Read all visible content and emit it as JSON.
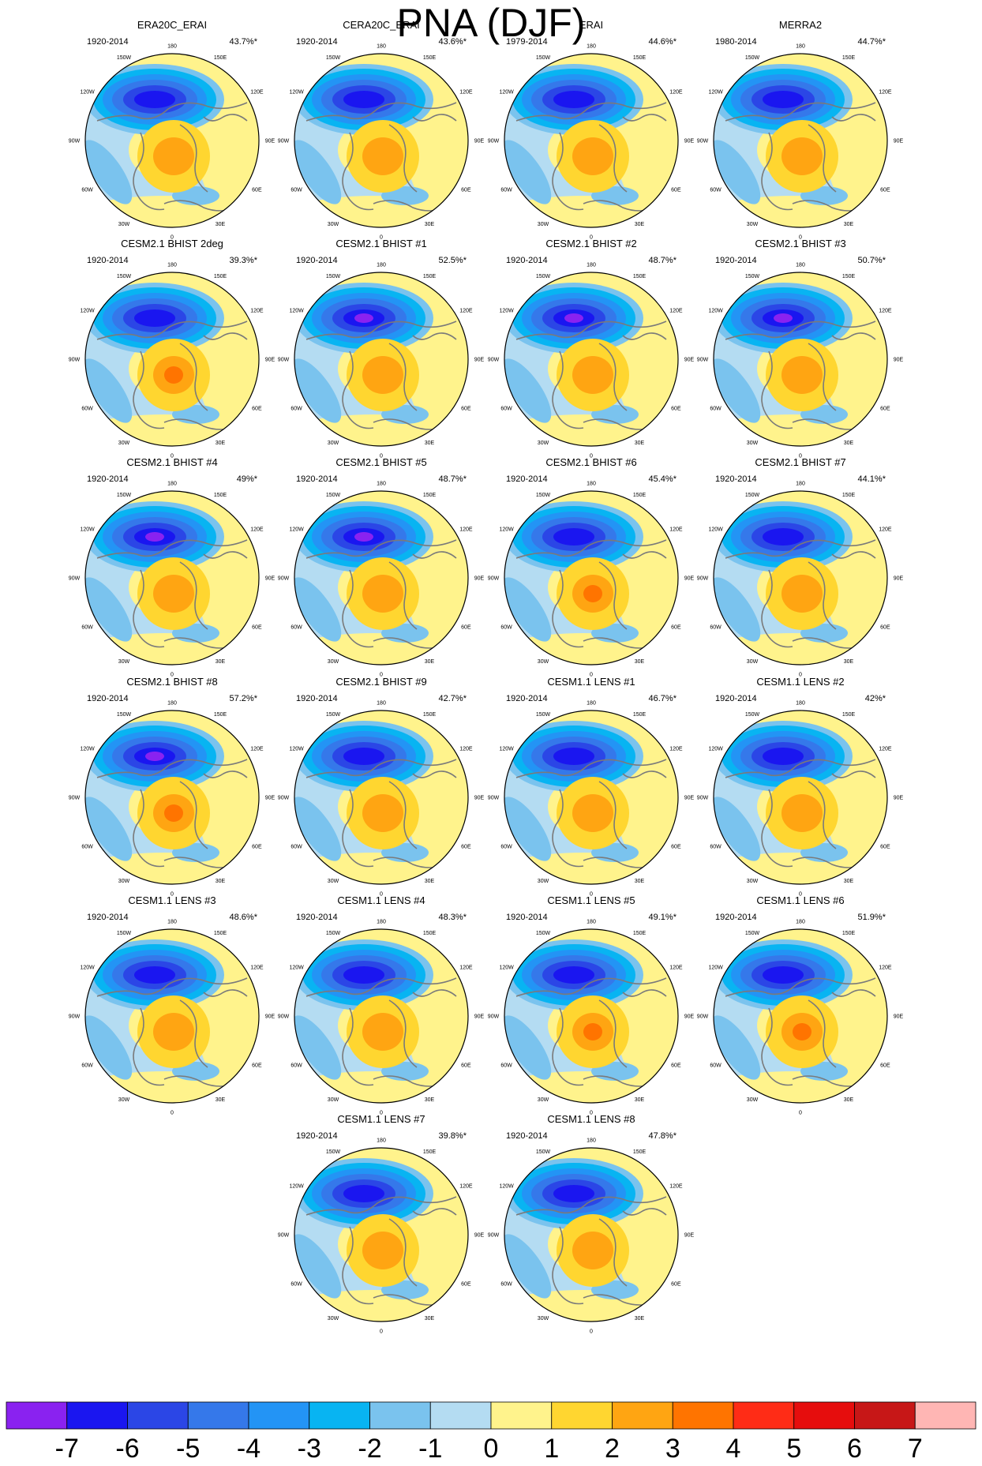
{
  "title": "PNA (DJF)",
  "chart_data": {
    "type": "polar-contour-map-panels",
    "variable": "PNA (DJF)",
    "map_projection": "north polar stereographic",
    "longitude_labels": [
      "180",
      "150W",
      "150E",
      "120W",
      "120E",
      "90W",
      "90E",
      "60W",
      "60E",
      "30W",
      "30E",
      "0"
    ],
    "panels": [
      {
        "title": "ERA20C_ERAI",
        "period": "1920-2014",
        "variance": "43.7%*",
        "min_level": -6,
        "max_level": 2
      },
      {
        "title": "CERA20C_ERAI",
        "period": "1920-2014",
        "variance": "43.6%*",
        "min_level": -6,
        "max_level": 2
      },
      {
        "title": "ERAI",
        "period": "1979-2014",
        "variance": "44.6%*",
        "min_level": -6,
        "max_level": 2
      },
      {
        "title": "MERRA2",
        "period": "1980-2014",
        "variance": "44.7%*",
        "min_level": -6,
        "max_level": 2
      },
      {
        "title": "CESM2.1 BHIST 2deg",
        "period": "1920-2014",
        "variance": "39.3%*",
        "min_level": -6,
        "max_level": 3
      },
      {
        "title": "CESM2.1 BHIST #1",
        "period": "1920-2014",
        "variance": "52.5%*",
        "min_level": -7,
        "max_level": 2
      },
      {
        "title": "CESM2.1 BHIST #2",
        "period": "1920-2014",
        "variance": "48.7%*",
        "min_level": -7,
        "max_level": 2
      },
      {
        "title": "CESM2.1 BHIST #3",
        "period": "1920-2014",
        "variance": "50.7%*",
        "min_level": -7,
        "max_level": 2
      },
      {
        "title": "CESM2.1 BHIST #4",
        "period": "1920-2014",
        "variance": "49%*",
        "min_level": -7,
        "max_level": 2
      },
      {
        "title": "CESM2.1 BHIST #5",
        "period": "1920-2014",
        "variance": "48.7%*",
        "min_level": -7,
        "max_level": 2
      },
      {
        "title": "CESM2.1 BHIST #6",
        "period": "1920-2014",
        "variance": "45.4%*",
        "min_level": -6,
        "max_level": 3
      },
      {
        "title": "CESM2.1 BHIST #7",
        "period": "1920-2014",
        "variance": "44.1%*",
        "min_level": -6,
        "max_level": 2
      },
      {
        "title": "CESM2.1 BHIST #8",
        "period": "1920-2014",
        "variance": "57.2%*",
        "min_level": -7,
        "max_level": 3
      },
      {
        "title": "CESM2.1 BHIST #9",
        "period": "1920-2014",
        "variance": "42.7%*",
        "min_level": -6,
        "max_level": 2
      },
      {
        "title": "CESM1.1 LENS #1",
        "period": "1920-2014",
        "variance": "46.7%*",
        "min_level": -6,
        "max_level": 2
      },
      {
        "title": "CESM1.1 LENS #2",
        "period": "1920-2014",
        "variance": "42%*",
        "min_level": -6,
        "max_level": 2
      },
      {
        "title": "CESM1.1 LENS #3",
        "period": "1920-2014",
        "variance": "48.6%*",
        "min_level": -6,
        "max_level": 2
      },
      {
        "title": "CESM1.1 LENS #4",
        "period": "1920-2014",
        "variance": "48.3%*",
        "min_level": -6,
        "max_level": 2
      },
      {
        "title": "CESM1.1 LENS #5",
        "period": "1920-2014",
        "variance": "49.1%*",
        "min_level": -6,
        "max_level": 3
      },
      {
        "title": "CESM1.1 LENS #6",
        "period": "1920-2014",
        "variance": "51.9%*",
        "min_level": -6,
        "max_level": 3
      },
      {
        "title": "CESM1.1 LENS #7",
        "period": "1920-2014",
        "variance": "39.8%*",
        "min_level": -6,
        "max_level": 2
      },
      {
        "title": "CESM1.1 LENS #8",
        "period": "1920-2014",
        "variance": "47.8%*",
        "min_level": -6,
        "max_level": 2
      }
    ],
    "colorbar": {
      "levels": [
        -7,
        -6,
        -5,
        -4,
        -3,
        -2,
        -1,
        0,
        1,
        2,
        3,
        4,
        5,
        6,
        7
      ],
      "labels": [
        "-7",
        "-6",
        "-5",
        "-4",
        "-3",
        "-2",
        "-1",
        "0",
        "1",
        "2",
        "3",
        "4",
        "5",
        "6",
        "7"
      ],
      "colors": [
        "#8a22f0",
        "#1a16f0",
        "#2b46e6",
        "#3578ea",
        "#2394f5",
        "#08b4f2",
        "#7ac3ee",
        "#b4dcf2",
        "#fff38c",
        "#ffd630",
        "#ffa512",
        "#ff7400",
        "#ff2c16",
        "#e60d0d",
        "#c71717",
        "#ffb6b4"
      ]
    }
  }
}
